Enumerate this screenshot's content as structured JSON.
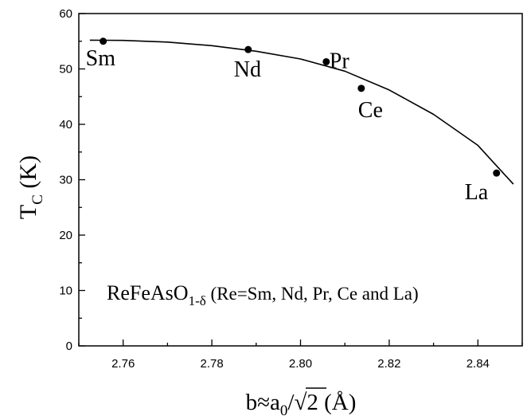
{
  "chart_data": {
    "type": "scatter",
    "xlim": [
      2.75,
      2.85
    ],
    "ylim": [
      0,
      60
    ],
    "x_ticks": [
      "2.76",
      "2.78",
      "2.80",
      "2.82",
      "2.84"
    ],
    "x_tick_values": [
      2.76,
      2.78,
      2.8,
      2.82,
      2.84
    ],
    "y_ticks": [
      "0",
      "10",
      "20",
      "30",
      "40",
      "50",
      "60"
    ],
    "y_tick_values": [
      0,
      10,
      20,
      30,
      40,
      50,
      60
    ],
    "points": [
      {
        "label": "Sm",
        "x": 2.7555,
        "y": 55.0
      },
      {
        "label": "Nd",
        "x": 2.7882,
        "y": 53.5
      },
      {
        "label": "Pr",
        "x": 2.8058,
        "y": 51.3
      },
      {
        "label": "Ce",
        "x": 2.8137,
        "y": 46.5
      },
      {
        "label": "La",
        "x": 2.8442,
        "y": 31.2
      }
    ],
    "fit_curve": {
      "x": [
        2.7525,
        2.76,
        2.77,
        2.78,
        2.79,
        2.8,
        2.81,
        2.82,
        2.83,
        2.84,
        2.848
      ],
      "y": [
        55.2,
        55.15,
        54.85,
        54.2,
        53.2,
        51.8,
        49.6,
        46.2,
        41.8,
        36.2,
        29.2
      ]
    },
    "grid": false,
    "legend": "none"
  },
  "axis_titles": {
    "y_main": "T",
    "y_sub": "C",
    "y_unit": " (K)",
    "x_b": "b≈a",
    "x_sub": "0",
    "x_slash": "/",
    "x_root": "√2",
    "x_unit": "  (Å)"
  },
  "annotation": {
    "main": "ReFeAsO",
    "sub": "1-δ",
    "rest": " (Re=Sm, Nd, Pr, Ce and La)"
  }
}
